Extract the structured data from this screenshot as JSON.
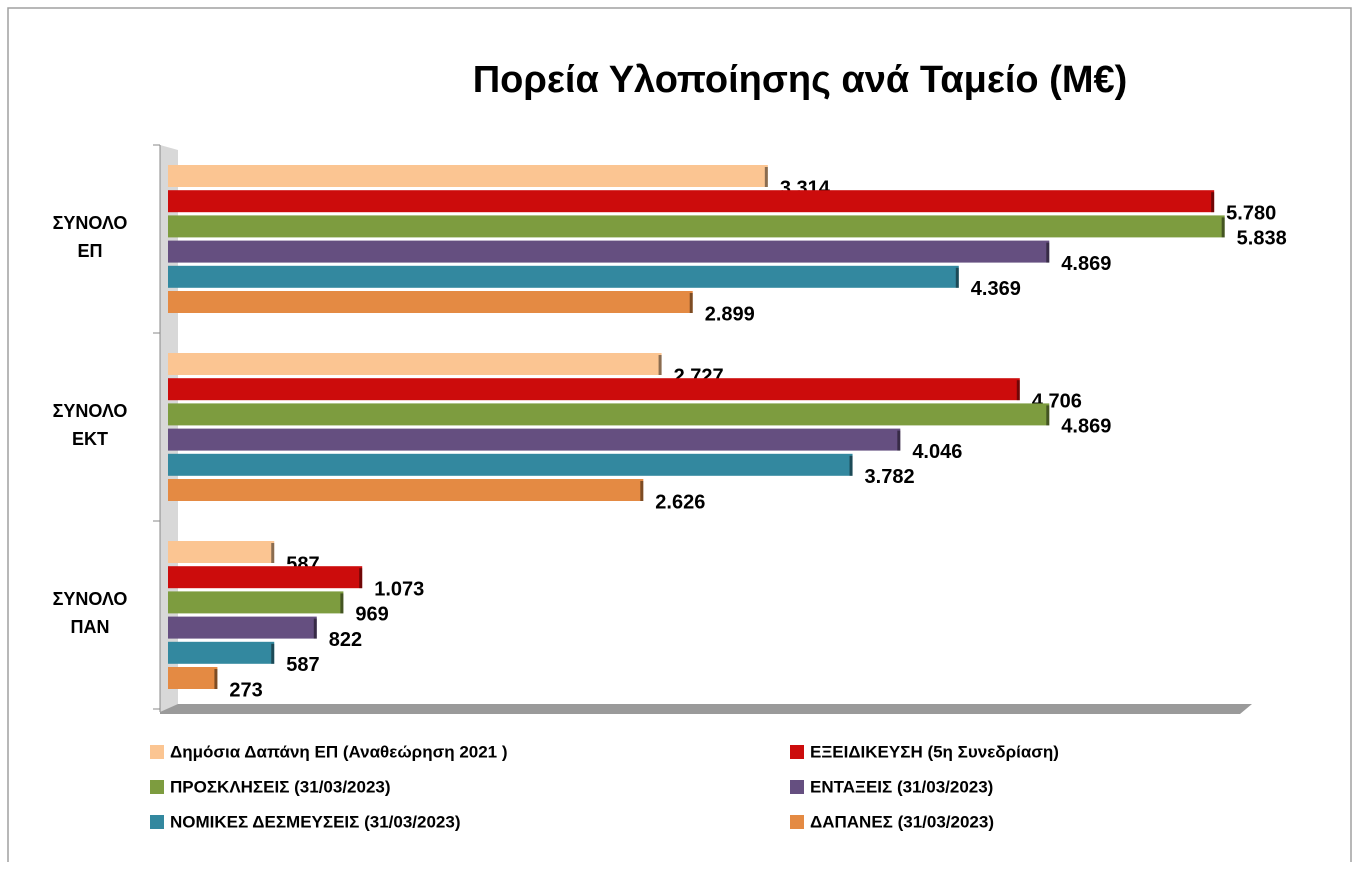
{
  "chart_data": {
    "type": "barh",
    "title": "Πορεία Υλοποίησης ανά Ταμείο (Μ€)",
    "categories": [
      "ΣΥΝΟΛΟ ΕΠ",
      "ΣΥΝΟΛΟ ΕΚΤ",
      "ΣΥΝΟΛΟ ΠΑΝ"
    ],
    "xlim": [
      0,
      6000
    ],
    "legend": "bottom",
    "series": [
      {
        "name": "Δημόσια Δαπάνη ΕΠ (Αναθεώρηση 2021 )",
        "color": "#fbc592",
        "values": [
          3314,
          2727,
          587
        ],
        "value_labels": [
          "3.314",
          "2.727",
          "587"
        ]
      },
      {
        "name": "ΕΞΕΙΔΙΚΕΥΣΗ (5η Συνεδρίαση)",
        "color": "#cc0c0c",
        "values": [
          5780,
          4706,
          1073
        ],
        "value_labels": [
          "5.780",
          "4.706",
          "1.073"
        ]
      },
      {
        "name": "ΠΡΟΣΚΛΗΣΕΙΣ (31/03/2023)",
        "color": "#7d9c3f",
        "values": [
          5838,
          4869,
          969
        ],
        "value_labels": [
          "5.838",
          "4.869",
          "969"
        ]
      },
      {
        "name": "ΕΝΤΑΞΕΙΣ (31/03/2023)",
        "color": "#654f80",
        "values": [
          4869,
          4046,
          822
        ],
        "value_labels": [
          "4.869",
          "4.046",
          "822"
        ]
      },
      {
        "name": "ΝΟΜΙΚΕΣ ΔΕΣΜΕΥΣΕΙΣ (31/03/2023)",
        "color": "#33889f",
        "values": [
          4369,
          3782,
          587
        ],
        "value_labels": [
          "4.369",
          "3.782",
          "587"
        ]
      },
      {
        "name": "ΔΑΠΑΝΕΣ  (31/03/2023)",
        "color": "#e48a43",
        "values": [
          2899,
          2626,
          273
        ],
        "value_labels": [
          "2.899",
          "2.626",
          "273"
        ]
      }
    ]
  }
}
